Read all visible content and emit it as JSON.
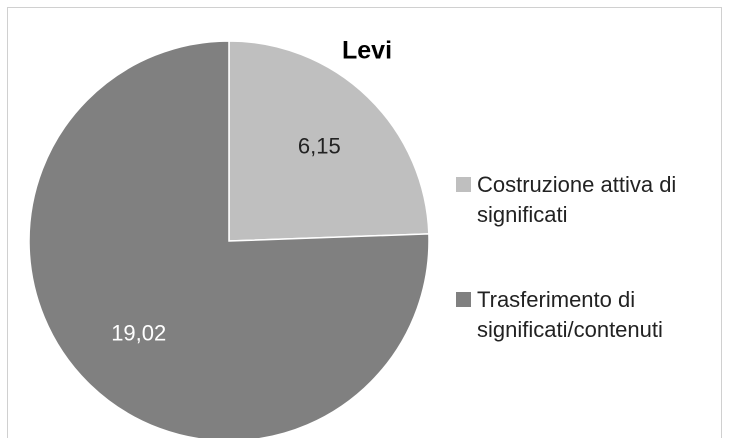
{
  "chart_data": {
    "type": "pie",
    "title": "Levi",
    "categories": [
      "Costruzione attiva di significati",
      "Trasferimento di significati/contenuti"
    ],
    "values": [
      6.15,
      19.02
    ],
    "value_labels": [
      "6,15",
      "19,02"
    ],
    "colors": [
      "#bfbfbf",
      "#808080"
    ],
    "legend": "right"
  }
}
